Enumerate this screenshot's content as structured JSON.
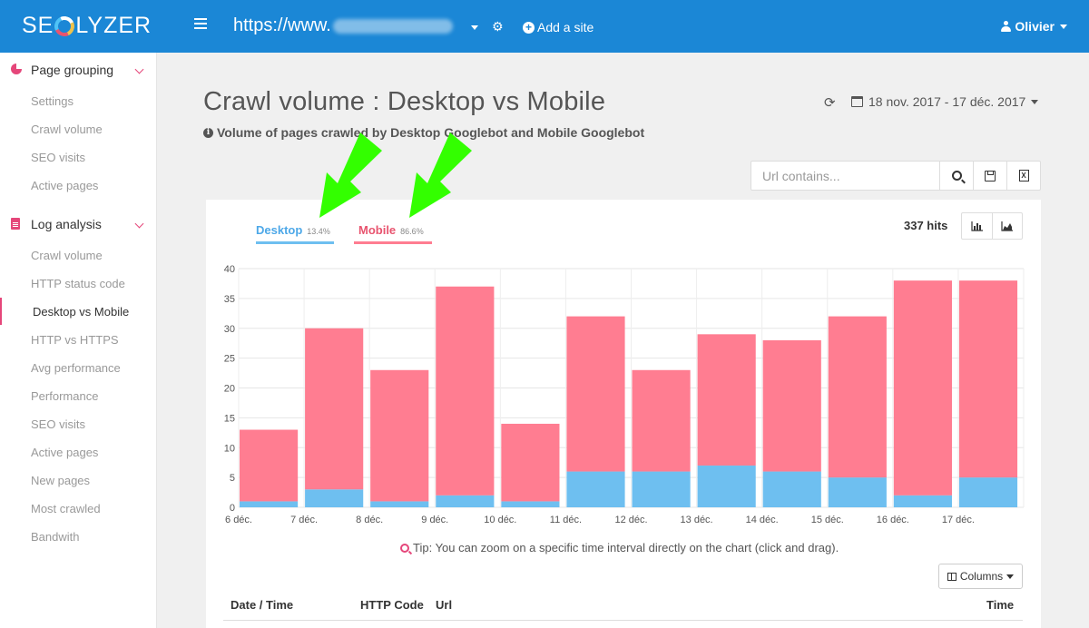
{
  "topbar": {
    "logo_left": "SE",
    "logo_right": "LYZER",
    "site_url": "https://www.",
    "add_site_label": "Add a site",
    "user_name": "Olivier"
  },
  "sidebar": {
    "groups": [
      {
        "label": "Page grouping",
        "items": [
          "Settings",
          "Crawl volume",
          "SEO visits",
          "Active pages"
        ]
      },
      {
        "label": "Log analysis",
        "items": [
          "Crawl volume",
          "HTTP status code",
          "Desktop vs Mobile",
          "HTTP vs HTTPS",
          "Avg performance",
          "Performance",
          "SEO visits",
          "Active pages",
          "New pages",
          "Most crawled",
          "Bandwith"
        ]
      }
    ],
    "active_item": "Desktop vs Mobile"
  },
  "header": {
    "title": "Crawl volume : Desktop vs Mobile",
    "subtitle": "Volume of pages crawled by Desktop Googlebot and Mobile Googlebot",
    "date_range": "18 nov. 2017 - 17 déc. 2017"
  },
  "search": {
    "placeholder": "Url contains..."
  },
  "tabs": {
    "desktop_label": "Desktop",
    "desktop_pct": "13.4%",
    "mobile_label": "Mobile",
    "mobile_pct": "86.6%"
  },
  "hits": "337 hits",
  "colors": {
    "desktop": "#6ebff0",
    "mobile": "#ff7d91",
    "accent": "#e5467a",
    "topbar": "#1b87d6",
    "arrow": "#33ff00"
  },
  "chart_data": {
    "type": "bar",
    "stacked": true,
    "categories": [
      "6 déc.",
      "7 déc.",
      "8 déc.",
      "9 déc.",
      "10 déc.",
      "11 déc.",
      "12 déc.",
      "13 déc.",
      "14 déc.",
      "15 déc.",
      "16 déc.",
      "17 déc."
    ],
    "series": [
      {
        "name": "Desktop",
        "values": [
          1,
          3,
          1,
          2,
          1,
          6,
          6,
          7,
          6,
          5,
          2,
          5
        ]
      },
      {
        "name": "Mobile",
        "values": [
          12,
          27,
          22,
          35,
          13,
          26,
          17,
          22,
          22,
          27,
          36,
          33
        ]
      }
    ],
    "ylim": [
      0,
      40
    ],
    "yticks": [
      0,
      5,
      10,
      15,
      20,
      25,
      30,
      35,
      40
    ],
    "grid": true
  },
  "tip": "Tip: You can zoom on a specific time interval directly on the chart (click and drag).",
  "columns_label": "Columns",
  "table": {
    "headers": [
      "Date / Time",
      "HTTP Code",
      "Url",
      "Time"
    ]
  }
}
